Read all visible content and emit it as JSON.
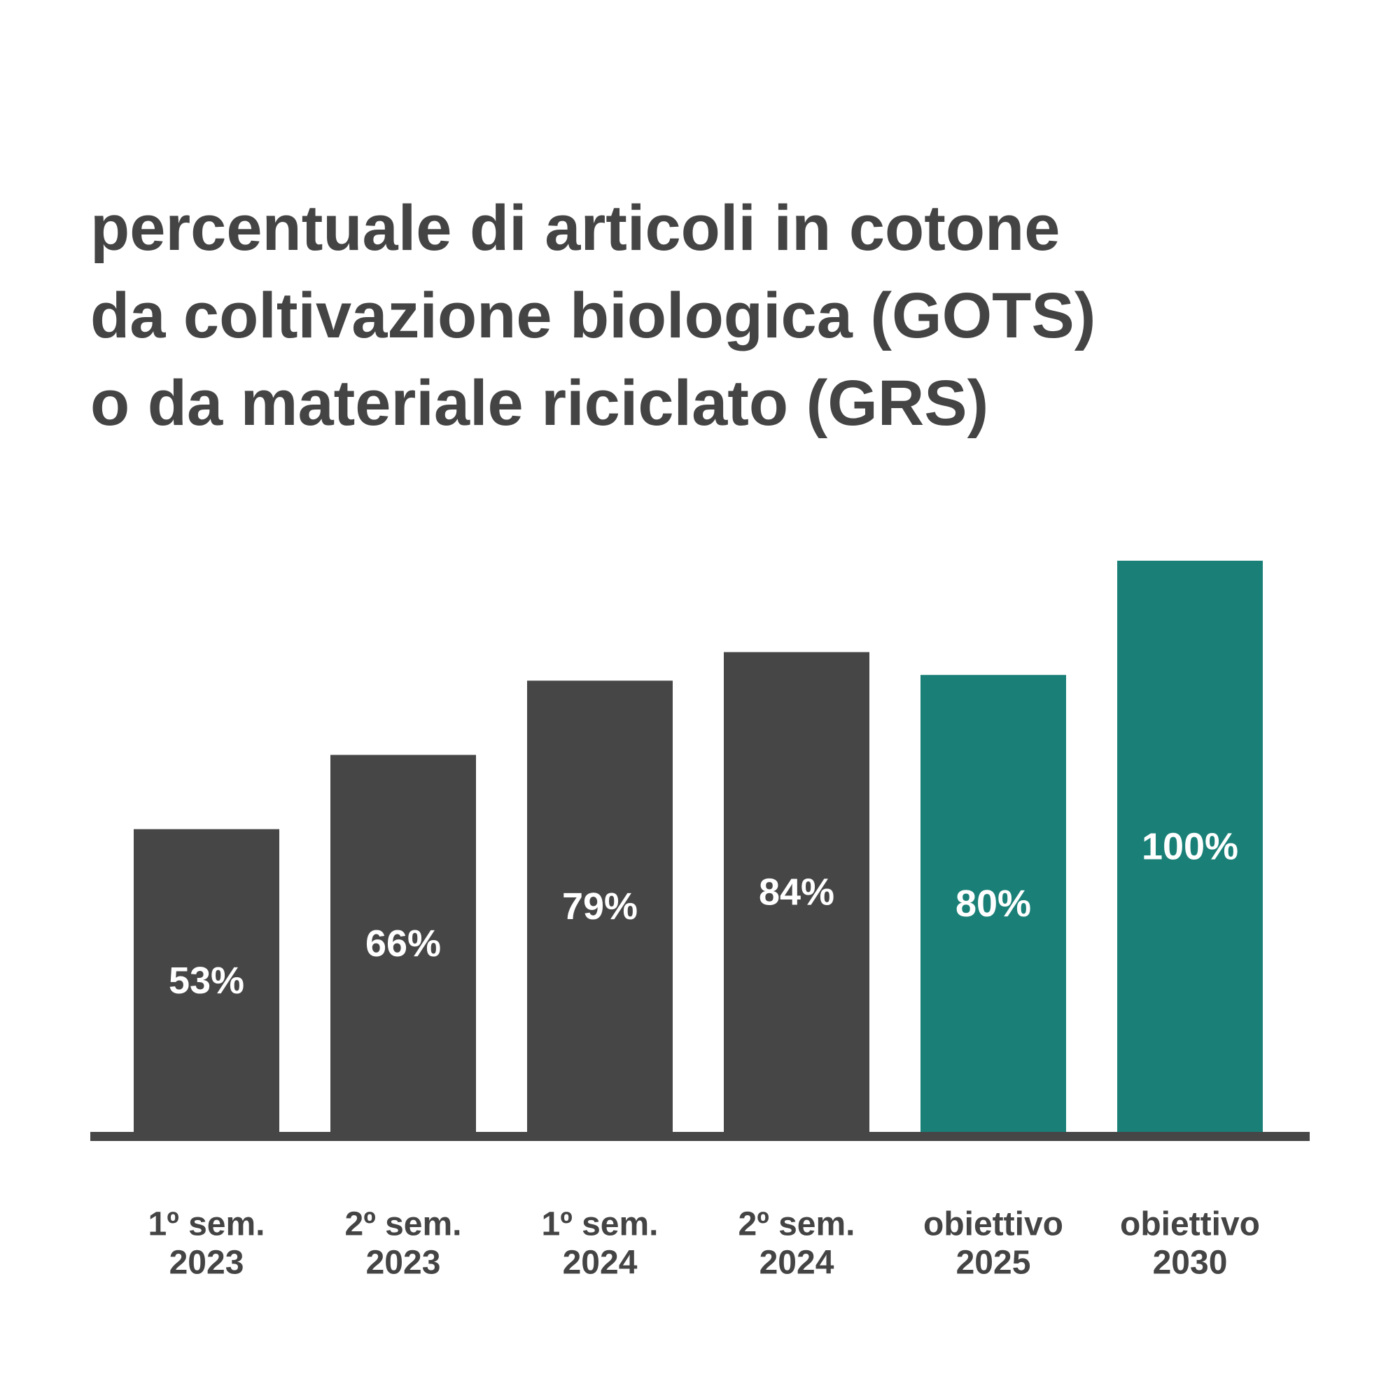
{
  "chart_data": {
    "type": "bar",
    "title": [
      "percentuale di articoli in cotone",
      "da coltivazione biologica (GOTS)",
      "o da materiale riciclato (GRS)"
    ],
    "categories": [
      [
        "1º sem.",
        "2023"
      ],
      [
        "2º sem.",
        "2023"
      ],
      [
        "1º sem.",
        "2024"
      ],
      [
        "2º sem.",
        "2024"
      ],
      [
        "obiettivo",
        "2025"
      ],
      [
        "obiettivo",
        "2030"
      ]
    ],
    "values": [
      53,
      66,
      79,
      84,
      80,
      100
    ],
    "value_labels": [
      "53%",
      "66%",
      "79%",
      "84%",
      "80%",
      "100%"
    ],
    "colors": [
      "#464646",
      "#464646",
      "#464646",
      "#464646",
      "#1a8077",
      "#1a8077"
    ],
    "ylim": [
      0,
      100
    ]
  }
}
